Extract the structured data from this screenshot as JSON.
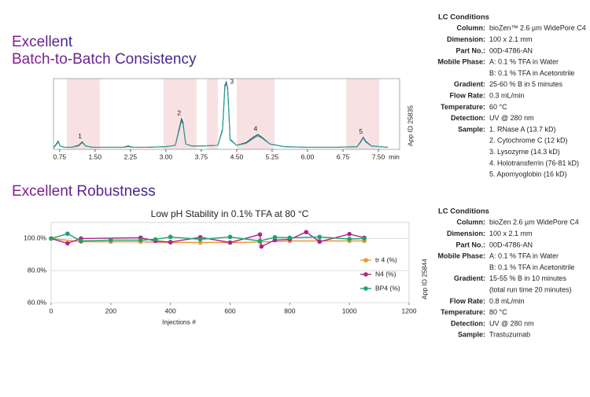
{
  "sections": [
    {
      "heading": [
        "Excellent",
        "Batch-to-Batch Consistency"
      ],
      "lc_conditions": {
        "title": "LC Conditions",
        "rows": [
          {
            "label": "Column:",
            "value": [
              "bioZen™ 2.6 µm WidePore C4"
            ]
          },
          {
            "label": "Dimension:",
            "value": [
              "100 x 2.1 mm"
            ]
          },
          {
            "label": "Part No.:",
            "value": [
              "00D-4786-AN"
            ]
          },
          {
            "label": "Mobile Phase:",
            "value": [
              "A: 0.1 % TFA in Water",
              "B: 0.1 % TFA in Acetonitrile"
            ]
          },
          {
            "label": "Gradient:",
            "value": [
              "25-60 % B in 5 minutes"
            ]
          },
          {
            "label": "Flow Rate:",
            "value": [
              "0.3 mL/min"
            ]
          },
          {
            "label": "Temperature:",
            "value": [
              "60 °C"
            ]
          },
          {
            "label": "Detection:",
            "value": [
              "UV @ 280 nm"
            ]
          },
          {
            "label": "Sample:",
            "value": [
              "1. RNase A (13.7 kD)",
              "2. Cytochrome C (12 kD)",
              "3. Lysozyme (14.3 kD)",
              "4. Holotransferrin (76-81 kD)",
              "5. Apomyoglobin (16 kD)"
            ]
          }
        ]
      }
    },
    {
      "heading": [
        "Excellent Robustness"
      ],
      "lc_conditions": {
        "title": "LC Conditions",
        "rows": [
          {
            "label": "Column:",
            "value": [
              "bioZen 2.6 µm WidePore C4"
            ]
          },
          {
            "label": "Dimension:",
            "value": [
              "100 x 2.1 mm"
            ]
          },
          {
            "label": "Part No.:",
            "value": [
              "00D-4786-AN"
            ]
          },
          {
            "label": "Mobile Phase:",
            "value": [
              "A: 0.1 % TFA in Water",
              "B: 0.1 % TFA in Acetonitrile"
            ]
          },
          {
            "label": "Gradient:",
            "value": [
              "15-55 % B in 10 minutes",
              "(total run time 20 minutes)"
            ]
          },
          {
            "label": "Flow Rate:",
            "value": [
              "0.8 mL/min"
            ]
          },
          {
            "label": "Temperature:",
            "value": [
              "80 °C"
            ]
          },
          {
            "label": "Detection:",
            "value": [
              "UV @ 280 nm"
            ]
          },
          {
            "label": "Sample:",
            "value": [
              "Trastuzumab"
            ]
          }
        ]
      }
    }
  ],
  "chart_data": [
    {
      "type": "chromatogram",
      "x_label": "min",
      "app_id": "App ID 25835",
      "xlim": [
        0.62,
        7.95
      ],
      "ylim": [
        0,
        105
      ],
      "xticks": [
        0.75,
        {
          "value": 1.5,
          "label": "1.50"
        },
        2.25,
        {
          "value": 3,
          "label": "3.00"
        },
        3.75,
        {
          "value": 4.5,
          "label": "4.50"
        },
        5.25,
        {
          "value": 6,
          "label": "6.00"
        },
        6.75,
        {
          "value": 7.5,
          "label": "7.50"
        }
      ],
      "highlight_ranges": [
        [
          0.9,
          1.6
        ],
        [
          2.95,
          3.65
        ],
        [
          3.87,
          4.1
        ],
        [
          4.5,
          5.3
        ],
        [
          6.82,
          7.52
        ]
      ],
      "highlight_color": "#f8e1e3",
      "x": [
        0.62,
        0.68,
        0.72,
        0.76,
        0.85,
        1.0,
        1.15,
        1.23,
        1.3,
        1.45,
        1.8,
        2.1,
        2.2,
        2.3,
        2.6,
        3.0,
        3.2,
        3.28,
        3.33,
        3.36,
        3.42,
        3.55,
        3.8,
        4.1,
        4.2,
        4.25,
        4.28,
        4.31,
        4.36,
        4.5,
        4.7,
        4.85,
        4.95,
        5.05,
        5.2,
        5.5,
        6.0,
        6.6,
        7.05,
        7.13,
        7.18,
        7.23,
        7.35,
        7.7
      ],
      "series": [
        {
          "color": "#1d3a4e",
          "values": [
            2,
            8,
            12,
            5,
            3,
            3,
            6,
            11,
            5,
            3,
            3,
            3,
            5,
            3,
            3,
            4,
            6,
            30,
            45,
            40,
            8,
            5,
            5,
            6,
            30,
            95,
            100,
            90,
            15,
            6,
            10,
            18,
            22,
            17,
            8,
            4,
            3,
            3,
            4,
            12,
            18,
            12,
            5,
            3
          ]
        },
        {
          "color": "#2aa39a",
          "values": [
            2,
            7,
            11,
            5,
            3,
            3,
            5,
            10,
            5,
            3,
            3,
            3,
            4,
            3,
            3,
            4,
            6,
            28,
            42,
            38,
            8,
            5,
            5,
            6,
            28,
            92,
            98,
            88,
            14,
            6,
            9,
            16,
            20,
            16,
            8,
            4,
            3,
            3,
            4,
            11,
            17,
            11,
            5,
            3
          ]
        }
      ],
      "annotations": [
        {
          "text": "1",
          "x": 1.23
        },
        {
          "text": "2",
          "x": 3.33
        },
        {
          "text": "3",
          "x": 4.28
        },
        {
          "text": "4",
          "x": 4.95
        },
        {
          "text": "5",
          "x": 7.18
        }
      ]
    },
    {
      "type": "line",
      "title": "Low pH Stability in 0.1% TFA at 80 °C",
      "x_label": "Injections #",
      "app_id": "App ID 25844",
      "xlim": [
        0,
        1200
      ],
      "ylim": [
        60,
        110
      ],
      "xticks": [
        0,
        200,
        400,
        600,
        800,
        1000,
        1200
      ],
      "yticks": [
        {
          "value": 60,
          "label": "60.0%"
        },
        {
          "value": 80,
          "label": "80.0%"
        },
        {
          "value": 100,
          "label": "100.0%"
        }
      ],
      "grid": true,
      "legend": "right",
      "series": [
        {
          "name": "tr 4 (%)",
          "color": "#e8963a",
          "x": [
            0,
            100,
            200,
            300,
            400,
            500,
            600,
            700,
            800,
            900,
            1000,
            1050
          ],
          "values": [
            100,
            98,
            98,
            98,
            97.5,
            97.5,
            97.5,
            97.8,
            98.5,
            98.5,
            98.5,
            98.5
          ]
        },
        {
          "name": "N4 (%)",
          "color": "#b0228c",
          "x": [
            0,
            55,
            100,
            300,
            350,
            400,
            500,
            600,
            700,
            705,
            750,
            800,
            855,
            900,
            1000,
            1050
          ],
          "values": [
            100,
            97,
            100,
            100.5,
            98.5,
            97.8,
            100.8,
            97.5,
            102.5,
            95,
            99,
            99.5,
            104,
            98,
            102.8,
            100.5
          ]
        },
        {
          "name": "BP4 (%)",
          "color": "#1aa36e",
          "x": [
            0,
            55,
            100,
            200,
            300,
            350,
            400,
            500,
            600,
            700,
            750,
            800,
            900,
            1000,
            1050
          ],
          "values": [
            100,
            103,
            98.5,
            99,
            99,
            99.5,
            101,
            99.5,
            101,
            98.5,
            100.8,
            100.5,
            101,
            99.7,
            100
          ]
        }
      ]
    }
  ]
}
